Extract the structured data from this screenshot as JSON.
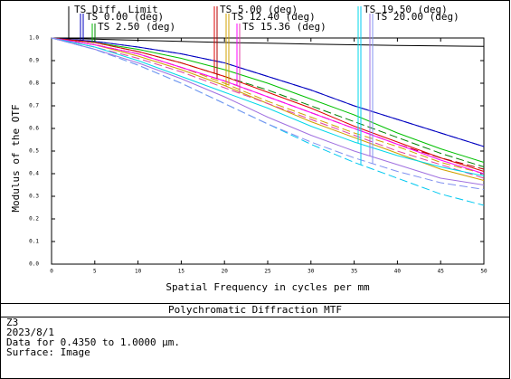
{
  "chart_data": {
    "type": "line",
    "title": "Polychromatic Diffraction MTF",
    "xlabel": "Spatial Frequency in cycles per mm",
    "ylabel": "Modulus of the OTF",
    "x": [
      0,
      5,
      10,
      15,
      20,
      25,
      30,
      35,
      40,
      45,
      50
    ],
    "xlim": [
      0,
      50
    ],
    "xticks": [
      0,
      5,
      10,
      15,
      20,
      25,
      30,
      35,
      40,
      45,
      50
    ],
    "ylim": [
      0,
      1
    ],
    "yticks": [
      {
        "value": 0,
        "label": "0.0"
      },
      0.1,
      0.2,
      0.3,
      0.4,
      0.5,
      0.6,
      0.7,
      0.8,
      0.9,
      {
        "value": 1,
        "label": "1.0"
      }
    ],
    "series": [
      {
        "name": "TS Diff. Limit",
        "color": "#000000",
        "values": [
          1,
          0.995,
          0.99,
          0.985,
          0.98,
          0.977,
          0.973,
          0.97,
          0.967,
          0.965,
          0.963
        ]
      },
      {
        "name": "TS 0.00 (deg)",
        "color": "#0000c0",
        "values": [
          1,
          0.985,
          0.96,
          0.93,
          0.89,
          0.83,
          0.77,
          0.7,
          0.64,
          0.58,
          0.52
        ]
      },
      {
        "color": "#0000c0",
        "dashed": true,
        "values": [
          1,
          0.985,
          0.96,
          0.93,
          0.89,
          0.83,
          0.77,
          0.7,
          0.64,
          0.58,
          0.52
        ]
      },
      {
        "name": "TS 2.50 (deg)",
        "color": "#00c000",
        "values": [
          1,
          0.98,
          0.95,
          0.91,
          0.86,
          0.8,
          0.73,
          0.66,
          0.58,
          0.51,
          0.45
        ]
      },
      {
        "color": "#008000",
        "dashed": true,
        "values": [
          1,
          0.98,
          0.94,
          0.89,
          0.83,
          0.77,
          0.7,
          0.63,
          0.56,
          0.49,
          0.43
        ]
      },
      {
        "name": "TS 5.00 (deg)",
        "color": "#e00000",
        "values": [
          1,
          0.98,
          0.94,
          0.89,
          0.83,
          0.76,
          0.69,
          0.61,
          0.54,
          0.47,
          0.41
        ]
      },
      {
        "color": "#b00000",
        "dashed": true,
        "values": [
          1,
          0.97,
          0.93,
          0.87,
          0.81,
          0.74,
          0.67,
          0.6,
          0.53,
          0.47,
          0.42
        ]
      },
      {
        "name": "TS 12.40 (deg)",
        "color": "#d0a000",
        "values": [
          1,
          0.97,
          0.92,
          0.86,
          0.79,
          0.71,
          0.63,
          0.56,
          0.49,
          0.42,
          0.37
        ]
      },
      {
        "color": "#d0a000",
        "dashed": true,
        "values": [
          1,
          0.97,
          0.93,
          0.87,
          0.8,
          0.72,
          0.65,
          0.58,
          0.52,
          0.45,
          0.4
        ]
      },
      {
        "name": "TS 15.36 (deg)",
        "color": "#ff00ff",
        "values": [
          1,
          0.97,
          0.93,
          0.87,
          0.81,
          0.74,
          0.67,
          0.6,
          0.53,
          0.46,
          0.4
        ]
      },
      {
        "color": "#e040a0",
        "dashed": true,
        "values": [
          1,
          0.96,
          0.91,
          0.85,
          0.78,
          0.71,
          0.64,
          0.57,
          0.5,
          0.44,
          0.38
        ]
      },
      {
        "name": "TS 19.50 (deg)",
        "color": "#00d8e8",
        "values": [
          1,
          0.96,
          0.9,
          0.83,
          0.76,
          0.69,
          0.61,
          0.54,
          0.48,
          0.43,
          0.39
        ]
      },
      {
        "color": "#00c8f0",
        "dashed": true,
        "values": [
          1,
          0.95,
          0.88,
          0.8,
          0.71,
          0.62,
          0.53,
          0.45,
          0.38,
          0.31,
          0.26
        ]
      },
      {
        "name": "TS 20.00 (deg)",
        "color": "#a070e0",
        "values": [
          1,
          0.95,
          0.89,
          0.82,
          0.74,
          0.65,
          0.57,
          0.5,
          0.44,
          0.38,
          0.35
        ]
      },
      {
        "color": "#8090f0",
        "dashed": true,
        "values": [
          1,
          0.95,
          0.88,
          0.8,
          0.71,
          0.62,
          0.54,
          0.47,
          0.41,
          0.36,
          0.33
        ]
      }
    ]
  },
  "footer": {
    "lines": [
      "Z3",
      "2023/8/1",
      "Data for 0.4350 to 1.0000 µm.",
      "Surface: Image"
    ]
  }
}
